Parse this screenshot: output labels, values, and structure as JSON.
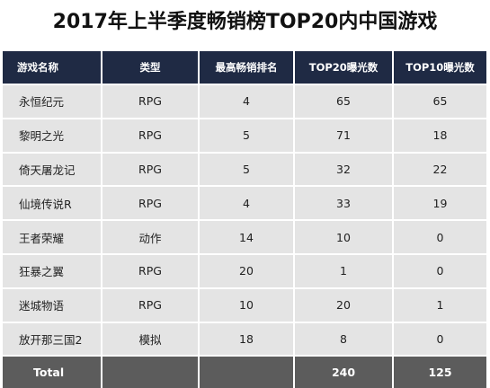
{
  "title": "2017年上半季度畅销榜TOP20内中国游戏",
  "chart_data": {
    "type": "table",
    "title": "2017年上半季度畅销榜TOP20内中国游戏",
    "columns": [
      "游戏名称",
      "类型",
      "最高畅销排名",
      "TOP20曝光数",
      "TOP10曝光数"
    ],
    "rows": [
      [
        "永恒纪元",
        "RPG",
        "4",
        "65",
        "65"
      ],
      [
        "黎明之光",
        "RPG",
        "5",
        "71",
        "18"
      ],
      [
        "倚天屠龙记",
        "RPG",
        "5",
        "32",
        "22"
      ],
      [
        "仙境传说R",
        "RPG",
        "4",
        "33",
        "19"
      ],
      [
        "王者荣耀",
        "动作",
        "14",
        "10",
        "0"
      ],
      [
        "狂暴之翼",
        "RPG",
        "20",
        "1",
        "0"
      ],
      [
        "迷城物语",
        "RPG",
        "10",
        "20",
        "1"
      ],
      [
        "放开那三国2",
        "模拟",
        "18",
        "8",
        "0"
      ]
    ],
    "total": [
      "Total",
      "",
      "",
      "240",
      "125"
    ]
  },
  "colors": {
    "header_bg": "#1f2a44",
    "row_bg": "#e4e4e4",
    "total_bg": "#5c5c5c"
  }
}
